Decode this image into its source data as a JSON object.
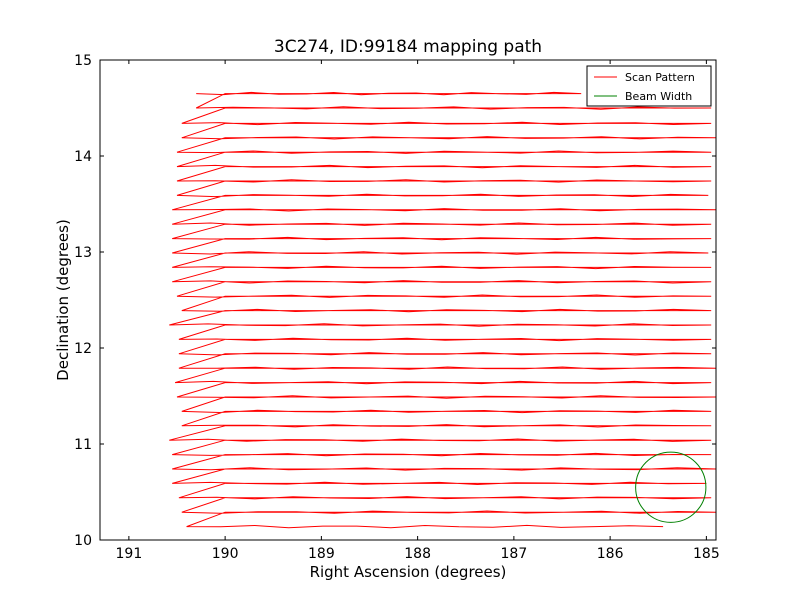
{
  "chart_data": {
    "type": "line",
    "title": "3C274, ID:99184 mapping path",
    "xlabel": "Right Ascension (degrees)",
    "ylabel": "Declination (degrees)",
    "xlim": [
      191.3,
      184.9
    ],
    "ylim": [
      10,
      15
    ],
    "x_reversed": true,
    "x_ticks": [
      191,
      190,
      189,
      188,
      187,
      186,
      185
    ],
    "y_ticks": [
      10,
      11,
      12,
      13,
      14,
      15
    ],
    "grid": false,
    "legend_position": "top-right",
    "series": [
      {
        "name": "Scan Pattern",
        "color": "#ff0000",
        "style": "line",
        "rows": [
          {
            "y": 10.14,
            "x_left": 190.4,
            "x_right": 185.45
          },
          {
            "y": 10.29,
            "x_left": 190.45,
            "x_right": 184.9
          },
          {
            "y": 10.44,
            "x_left": 190.48,
            "x_right": 184.95
          },
          {
            "y": 10.59,
            "x_left": 190.55,
            "x_right": 185.0
          },
          {
            "y": 10.74,
            "x_left": 190.55,
            "x_right": 184.9
          },
          {
            "y": 10.89,
            "x_left": 190.55,
            "x_right": 184.95
          },
          {
            "y": 11.04,
            "x_left": 190.58,
            "x_right": 184.95
          },
          {
            "y": 11.19,
            "x_left": 190.45,
            "x_right": 184.95
          },
          {
            "y": 11.34,
            "x_left": 190.45,
            "x_right": 184.95
          },
          {
            "y": 11.49,
            "x_left": 190.5,
            "x_right": 184.9
          },
          {
            "y": 11.64,
            "x_left": 190.52,
            "x_right": 184.95
          },
          {
            "y": 11.79,
            "x_left": 190.48,
            "x_right": 184.9
          },
          {
            "y": 11.94,
            "x_left": 190.48,
            "x_right": 184.95
          },
          {
            "y": 12.09,
            "x_left": 190.48,
            "x_right": 184.95
          },
          {
            "y": 12.24,
            "x_left": 190.58,
            "x_right": 184.95
          },
          {
            "y": 12.39,
            "x_left": 190.45,
            "x_right": 184.95
          },
          {
            "y": 12.54,
            "x_left": 190.5,
            "x_right": 184.95
          },
          {
            "y": 12.69,
            "x_left": 190.55,
            "x_right": 184.95
          },
          {
            "y": 12.84,
            "x_left": 190.55,
            "x_right": 184.95
          },
          {
            "y": 12.99,
            "x_left": 190.55,
            "x_right": 184.98
          },
          {
            "y": 13.14,
            "x_left": 190.55,
            "x_right": 184.95
          },
          {
            "y": 13.29,
            "x_left": 190.55,
            "x_right": 184.95
          },
          {
            "y": 13.44,
            "x_left": 190.55,
            "x_right": 184.9
          },
          {
            "y": 13.59,
            "x_left": 190.5,
            "x_right": 184.98
          },
          {
            "y": 13.74,
            "x_left": 190.5,
            "x_right": 184.95
          },
          {
            "y": 13.89,
            "x_left": 190.5,
            "x_right": 184.95
          },
          {
            "y": 14.04,
            "x_left": 190.5,
            "x_right": 184.95
          },
          {
            "y": 14.19,
            "x_left": 190.45,
            "x_right": 184.9
          },
          {
            "y": 14.34,
            "x_left": 190.45,
            "x_right": 184.95
          },
          {
            "y": 14.5,
            "x_left": 190.3,
            "x_right": 184.95
          },
          {
            "y": 14.65,
            "x_left": 190.3,
            "x_right": 186.3
          }
        ]
      },
      {
        "name": "Beam Width",
        "color": "#008000",
        "style": "circle",
        "center": {
          "x": 185.37,
          "y": 10.55
        },
        "radius_deg": 0.365
      }
    ]
  }
}
